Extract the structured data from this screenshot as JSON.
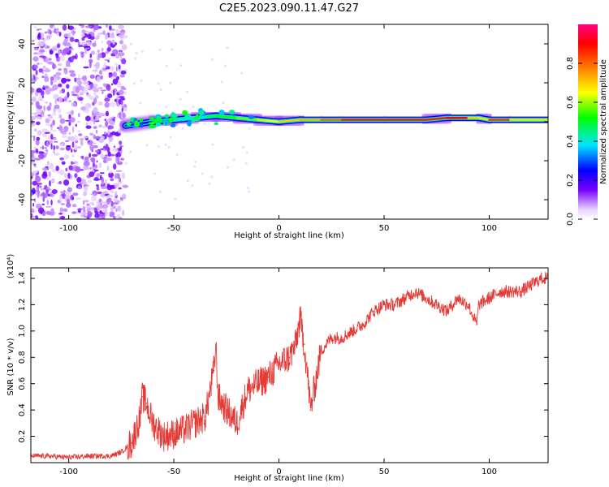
{
  "title": "C2E5.2023.090.11.47.G27",
  "chart_data": [
    {
      "type": "heatmap",
      "xlabel": "Height of straight line (km)",
      "ylabel": "Frequency (Hz)",
      "xlim": [
        -118,
        128
      ],
      "ylim": [
        -50,
        50
      ],
      "x_ticks": [
        -100,
        -50,
        0,
        50,
        100
      ],
      "y_ticks": [
        -40,
        -20,
        0,
        20,
        40
      ],
      "colorbar": {
        "label": "Normalized spectral amplitude",
        "range": [
          0.0,
          1.0
        ],
        "ticks": [
          0.0,
          0.2,
          0.4,
          0.6,
          0.8
        ],
        "tick_labels": [
          "0.0",
          "0.2",
          "0.4",
          "0.6",
          "0.8"
        ]
      },
      "ridge": {
        "x": [
          -73,
          -60,
          -50,
          -40,
          -30,
          -20,
          -10,
          0,
          10,
          20,
          30,
          50,
          70,
          80,
          90,
          95,
          100,
          110,
          128
        ],
        "frequency_hz": [
          -2,
          0,
          1,
          2,
          3,
          2,
          1,
          0,
          1,
          1,
          1,
          1,
          1,
          2,
          2,
          2,
          1,
          1,
          1
        ],
        "amplitude": [
          0.2,
          0.3,
          0.4,
          0.45,
          0.5,
          0.55,
          0.6,
          0.7,
          0.7,
          0.75,
          0.85,
          0.9,
          0.85,
          0.9,
          0.9,
          0.5,
          0.85,
          0.85,
          0.5
        ]
      },
      "noise_region_x": [
        -118,
        -73
      ]
    },
    {
      "type": "line",
      "xlabel": "Height of straight line (km)",
      "ylabel": "SNR (10 * v/v)",
      "y_multiplier": "(x10⁴)",
      "xlim": [
        -118,
        128
      ],
      "ylim": [
        0,
        1.48
      ],
      "x_ticks": [
        -100,
        -50,
        0,
        50,
        100
      ],
      "y_ticks": [
        0.2,
        0.4,
        0.6,
        0.8,
        1.0,
        1.2,
        1.4
      ],
      "y_tick_labels": [
        "0.2",
        "0.4",
        "0.6",
        "0.8",
        "1.0",
        "1.2",
        "1.4"
      ],
      "series": [
        {
          "color": "#e53935",
          "x": [
            -118,
            -110,
            -100,
            -90,
            -80,
            -75,
            -70,
            -66,
            -65,
            -63,
            -60,
            -55,
            -50,
            -45,
            -40,
            -35,
            -31,
            -30,
            -29,
            -25,
            -20,
            -15,
            -10,
            -5,
            0,
            5,
            8,
            10,
            12,
            14,
            15,
            20,
            25,
            30,
            35,
            40,
            45,
            50,
            55,
            60,
            65,
            70,
            75,
            80,
            85,
            90,
            94,
            95,
            100,
            105,
            110,
            115,
            120,
            125,
            128
          ],
          "y": [
            0.05,
            0.05,
            0.04,
            0.05,
            0.05,
            0.08,
            0.15,
            0.35,
            0.5,
            0.45,
            0.3,
            0.2,
            0.22,
            0.25,
            0.3,
            0.35,
            0.7,
            0.9,
            0.5,
            0.4,
            0.3,
            0.55,
            0.6,
            0.65,
            0.75,
            0.8,
            0.9,
            1.1,
            0.9,
            0.6,
            0.4,
            0.85,
            0.95,
            0.95,
            1.0,
            1.05,
            1.15,
            1.2,
            1.2,
            1.25,
            1.3,
            1.25,
            1.2,
            1.15,
            1.25,
            1.2,
            1.05,
            1.2,
            1.25,
            1.3,
            1.3,
            1.3,
            1.35,
            1.4,
            1.4
          ]
        }
      ]
    }
  ]
}
